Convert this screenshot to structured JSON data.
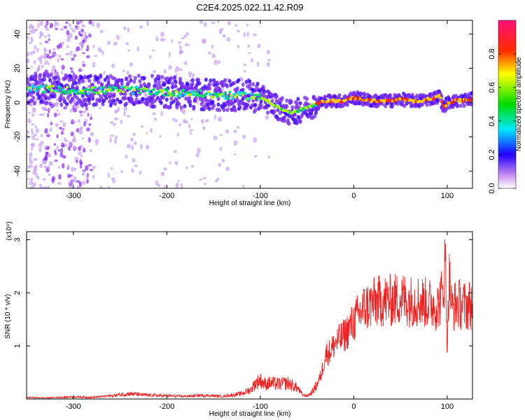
{
  "title": "C2E4.2025.022.11.42.R09",
  "chart_data": [
    {
      "type": "heatmap",
      "xlabel": "Height of straight line (km)",
      "ylabel": "Frequency (Hz)",
      "xlim": [
        -350,
        127
      ],
      "ylim": [
        -50,
        48
      ],
      "xticks": [
        -300,
        -200,
        -100,
        0,
        100
      ],
      "yticks": [
        -40,
        -20,
        0,
        20,
        40
      ],
      "colorbar": {
        "label": "Normalized spectral amplitude",
        "range": [
          0,
          1
        ],
        "ticks": [
          "0.0",
          "0.2",
          "0.4",
          "0.6",
          "0.8"
        ]
      },
      "ridge": {
        "x": [
          -350,
          -330,
          -300,
          -275,
          -250,
          -225,
          -200,
          -175,
          -150,
          -125,
          -110,
          -95,
          -80,
          -70,
          -60,
          -50,
          -40,
          -30,
          -20,
          -10,
          0,
          10,
          20,
          30,
          40,
          50,
          60,
          70,
          80,
          88,
          92,
          96,
          100,
          110,
          127
        ],
        "y": [
          8,
          8,
          7,
          7,
          7.5,
          7,
          6,
          5.5,
          4.5,
          4,
          4,
          2,
          -3,
          -6,
          -5,
          -3,
          -1,
          1,
          1,
          1,
          3,
          2,
          1,
          1,
          1,
          2,
          1,
          1,
          2,
          3,
          4,
          -3,
          0,
          1,
          2
        ]
      },
      "grid": false,
      "legend": "none"
    },
    {
      "type": "line",
      "xlabel": "Height of straight line (km)",
      "ylabel": "SNR (10 * v/v)",
      "yscale_label": "(x10⁴)",
      "xlim": [
        -350,
        127
      ],
      "ylim": [
        0,
        3.15
      ],
      "xticks": [
        -300,
        -200,
        -100,
        0,
        100
      ],
      "yticks": [
        1,
        2,
        3
      ],
      "series": [
        {
          "color": "#ee2222",
          "x": [
            -350,
            -330,
            -300,
            -280,
            -260,
            -240,
            -220,
            -200,
            -180,
            -160,
            -140,
            -120,
            -110,
            -105,
            -100,
            -95,
            -90,
            -80,
            -70,
            -60,
            -55,
            -50,
            -45,
            -40,
            -35,
            -30,
            -25,
            -20,
            -10,
            0,
            10,
            20,
            30,
            40,
            50,
            60,
            70,
            80,
            90,
            95,
            98,
            100,
            102,
            105,
            110,
            120,
            127
          ],
          "y": [
            0.03,
            0.02,
            0.04,
            0.03,
            0.06,
            0.1,
            0.07,
            0.06,
            0.05,
            0.07,
            0.05,
            0.1,
            0.18,
            0.3,
            0.35,
            0.28,
            0.3,
            0.28,
            0.3,
            0.2,
            0.08,
            0.06,
            0.12,
            0.25,
            0.45,
            0.85,
            0.9,
            1.05,
            1.2,
            1.45,
            1.7,
            1.8,
            1.85,
            1.85,
            1.9,
            1.85,
            1.85,
            1.8,
            1.75,
            2.0,
            2.6,
            1.0,
            2.3,
            1.7,
            1.8,
            1.75,
            1.8
          ]
        }
      ],
      "grid": false,
      "legend": "none"
    }
  ]
}
